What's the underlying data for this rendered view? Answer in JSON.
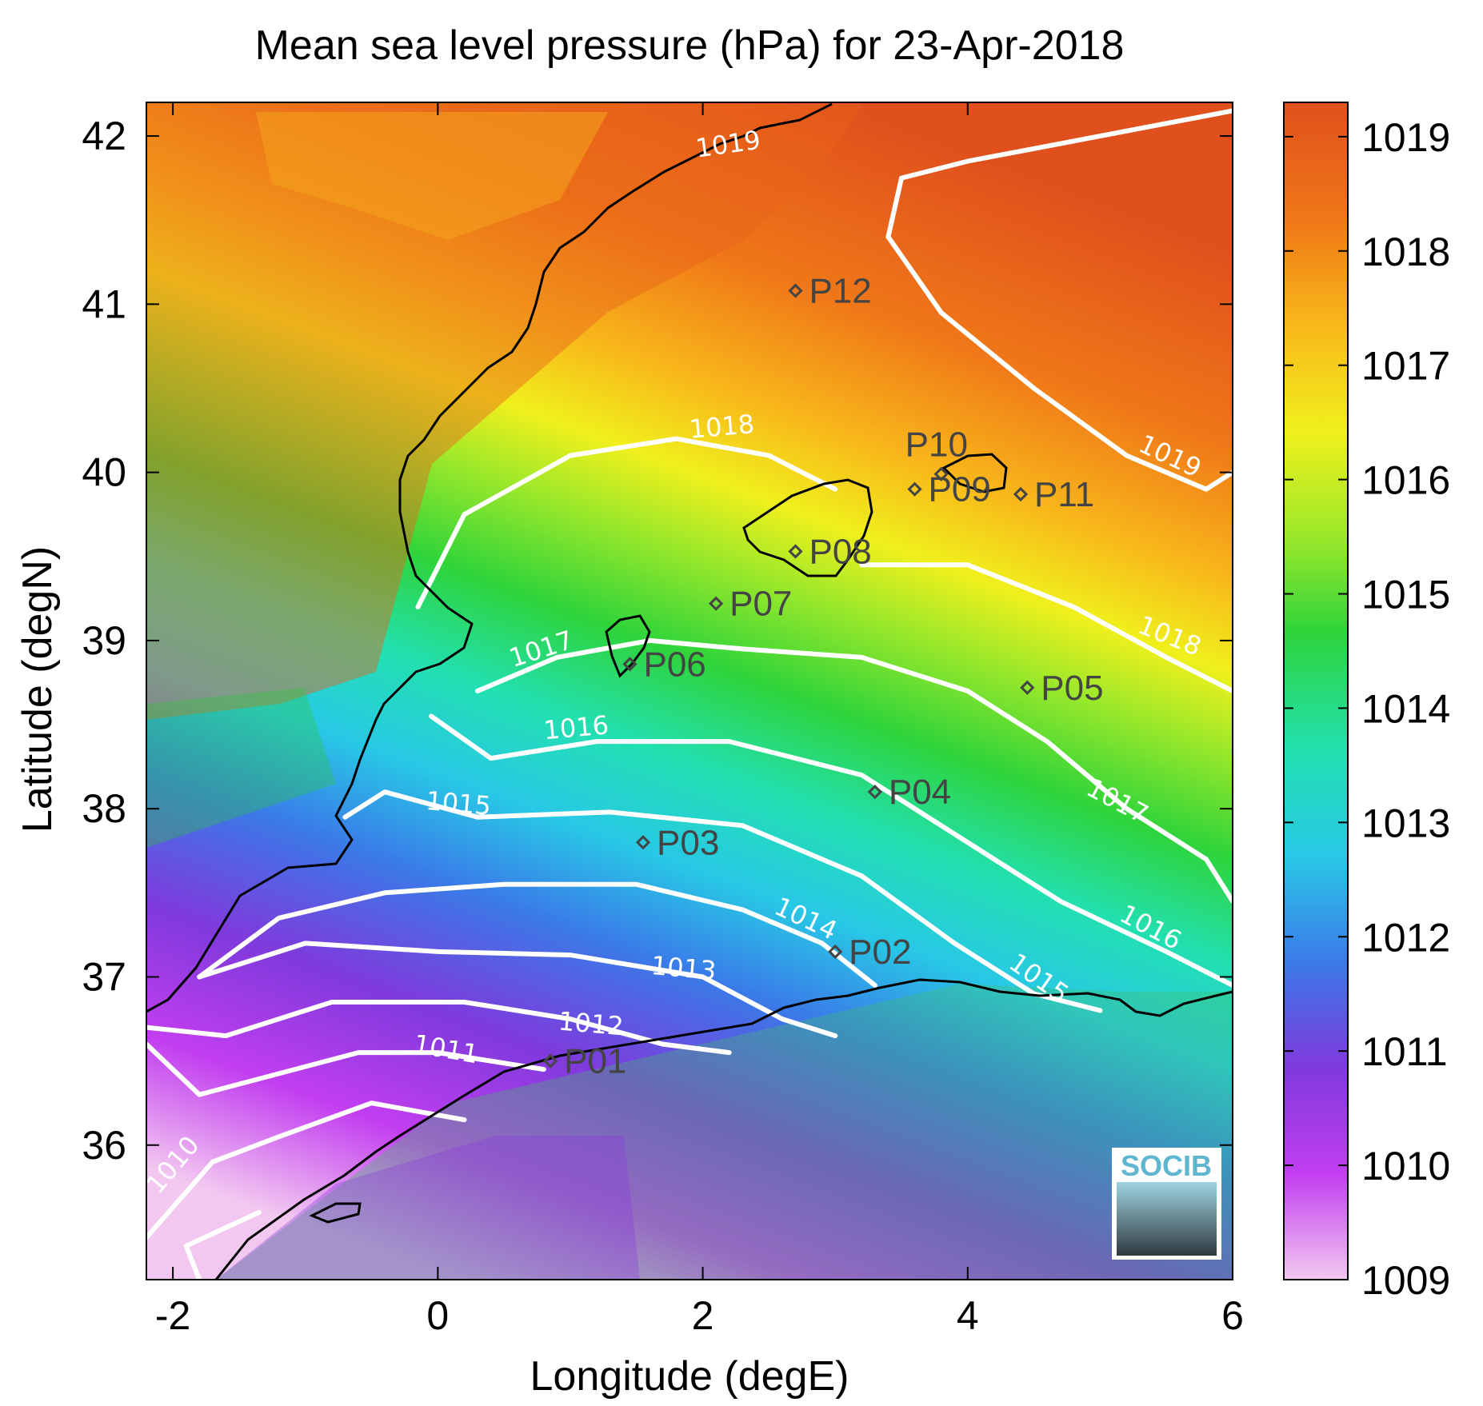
{
  "title": "Mean sea level pressure (hPa) for 23-Apr-2018",
  "xlabel": "Longitude (degE)",
  "ylabel": "Latitude (degN)",
  "logo_text": "SOCIB",
  "x_ticks": [
    "-2",
    "0",
    "2",
    "4",
    "6"
  ],
  "y_ticks": [
    "42",
    "41",
    "40",
    "39",
    "38",
    "37",
    "36"
  ],
  "colorbar_ticks": [
    "1019",
    "1018",
    "1017",
    "1016",
    "1015",
    "1014",
    "1013",
    "1012",
    "1011",
    "1010",
    "1009"
  ],
  "colormap": [
    "#f2c8f0",
    "#c23ef0",
    "#7f3adc",
    "#3a7ae8",
    "#28c8e6",
    "#22e0b0",
    "#2ed43a",
    "#9be82a",
    "#f0f01c",
    "#f8b81a",
    "#f07818",
    "#e0501c"
  ],
  "chart_data": {
    "type": "heatmap",
    "variable": "Mean sea level pressure",
    "units": "hPa",
    "date": "23-Apr-2018",
    "xlim": [
      -2.2,
      6
    ],
    "ylim": [
      35.2,
      42.2
    ],
    "colorbar_range": [
      1009,
      1019.3
    ],
    "contour_levels": [
      1010,
      1011,
      1012,
      1013,
      1014,
      1015,
      1016,
      1017,
      1018,
      1019
    ],
    "contour_labels": [
      {
        "text": "1019",
        "lon": 2.2,
        "lat": 41.9,
        "angle": -8
      },
      {
        "text": "1019",
        "lon": 5.5,
        "lat": 40.05,
        "angle": 25
      },
      {
        "text": "1018",
        "lon": 2.15,
        "lat": 40.22,
        "angle": -5
      },
      {
        "text": "1018",
        "lon": 5.5,
        "lat": 38.98,
        "angle": 22
      },
      {
        "text": "1017",
        "lon": 0.8,
        "lat": 38.9,
        "angle": -18
      },
      {
        "text": "1017",
        "lon": 5.1,
        "lat": 38.0,
        "angle": 28
      },
      {
        "text": "1016",
        "lon": 1.05,
        "lat": 38.43,
        "angle": -5
      },
      {
        "text": "1016",
        "lon": 5.35,
        "lat": 37.25,
        "angle": 28
      },
      {
        "text": "1015",
        "lon": 0.15,
        "lat": 37.98,
        "angle": 5
      },
      {
        "text": "1015",
        "lon": 4.5,
        "lat": 36.95,
        "angle": 35
      },
      {
        "text": "1014",
        "lon": 2.75,
        "lat": 37.3,
        "angle": 25
      },
      {
        "text": "1013",
        "lon": 1.85,
        "lat": 37.0,
        "angle": 5
      },
      {
        "text": "1012",
        "lon": 1.15,
        "lat": 36.67,
        "angle": 5
      },
      {
        "text": "1011",
        "lon": 0.05,
        "lat": 36.52,
        "angle": 10
      },
      {
        "text": "1010",
        "lon": -1.95,
        "lat": 35.85,
        "angle": -50
      }
    ],
    "stations": [
      {
        "name": "P01",
        "lon": 0.85,
        "lat": 36.5
      },
      {
        "name": "P02",
        "lon": 3.0,
        "lat": 37.15
      },
      {
        "name": "P03",
        "lon": 1.55,
        "lat": 37.8
      },
      {
        "name": "P04",
        "lon": 3.3,
        "lat": 38.1
      },
      {
        "name": "P05",
        "lon": 4.45,
        "lat": 38.72
      },
      {
        "name": "P06",
        "lon": 1.45,
        "lat": 38.86
      },
      {
        "name": "P07",
        "lon": 2.1,
        "lat": 39.22
      },
      {
        "name": "P08",
        "lon": 2.7,
        "lat": 39.53
      },
      {
        "name": "P09",
        "lon": 3.6,
        "lat": 39.9
      },
      {
        "name": "P10",
        "lon": 3.8,
        "lat": 39.99
      },
      {
        "name": "P11",
        "lon": 4.4,
        "lat": 39.87
      },
      {
        "name": "P12",
        "lon": 2.7,
        "lat": 41.08
      }
    ]
  }
}
